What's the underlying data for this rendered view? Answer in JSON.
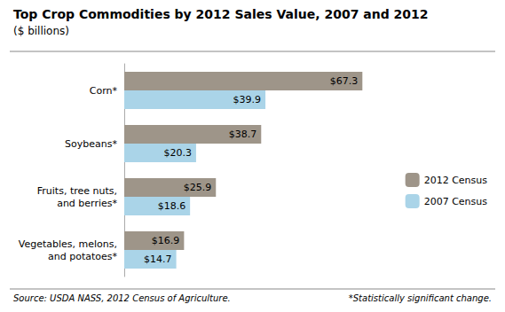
{
  "chart_data": {
    "type": "bar",
    "orientation": "horizontal",
    "title": "Top Crop Commodities by 2012 Sales Value, 2007 and 2012",
    "subtitle": "($ billions)",
    "categories": [
      "Corn*",
      "Soybeans*",
      "Fruits, tree nuts,\nand berries*",
      "Vegetables, melons,\nand potatoes*"
    ],
    "series": [
      {
        "name": "2012 Census",
        "color": "#9e9589",
        "values": [
          67.3,
          38.7,
          25.9,
          16.9
        ],
        "value_labels": [
          "$67.3",
          "$38.7",
          "$25.9",
          "$16.9"
        ]
      },
      {
        "name": "2007 Census",
        "color": "#aad4e8",
        "values": [
          39.9,
          20.3,
          18.6,
          14.7
        ],
        "value_labels": [
          "$39.9",
          "$20.3",
          "$18.6",
          "$14.7"
        ]
      }
    ],
    "xlim": [
      0,
      75
    ],
    "data_labels": true,
    "tick_labels": "y",
    "grid": false,
    "legend": "right",
    "annotations": [
      "Source: USDA NASS, 2012 Census of Agriculture.",
      "*Statistically significant change."
    ]
  }
}
